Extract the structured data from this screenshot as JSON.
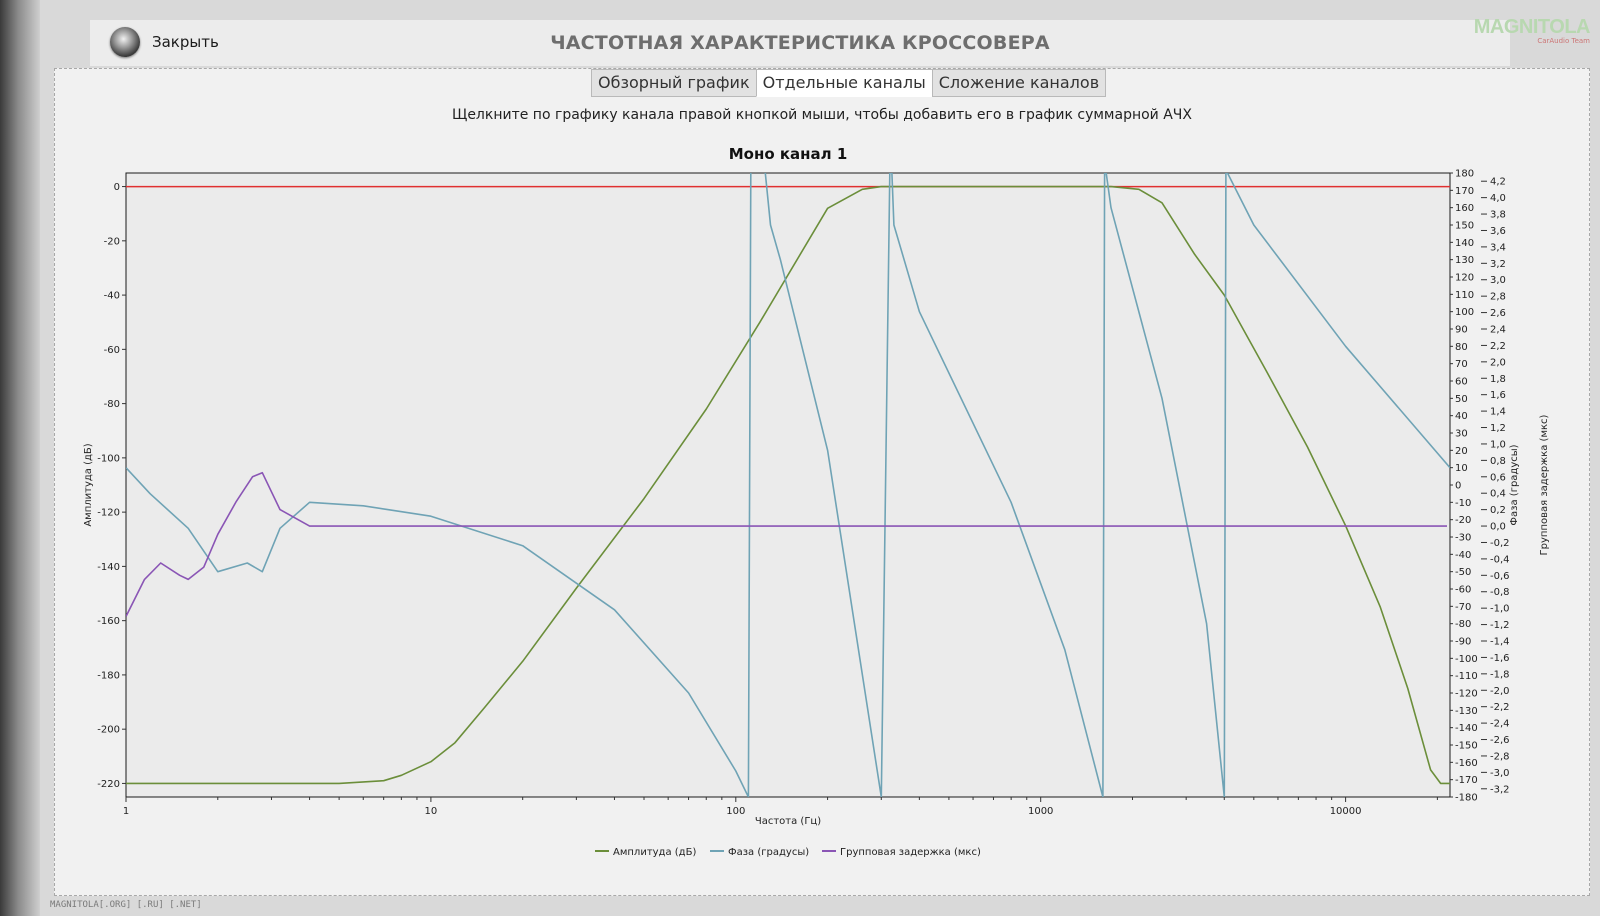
{
  "window": {
    "close_label": "Закрыть",
    "title": "ЧАСТОТНАЯ ХАРАКТЕРИСТИКА КРОССОВЕРА",
    "logo_text": "MAGNITOLA",
    "logo_sub": "CarAudio Team"
  },
  "tabs": [
    {
      "label": "Обзорный график",
      "active": false
    },
    {
      "label": "Отдельные каналы",
      "active": true
    },
    {
      "label": "Сложение каналов",
      "active": false
    }
  ],
  "hint": "Щелкните по графику канала правой кнопкой мыши, чтобы добавить его в график суммарной АЧХ",
  "footer": "MAGNITOLA[.ORG] [.RU] [.NET]",
  "chart_data": {
    "type": "line",
    "title": "Моно канал 1",
    "xlabel": "Частота (Гц)",
    "ylabel": "Амплитуда (дБ)",
    "y2label": "Фаза (градусы)",
    "y3label": "Групповая задержка (мкс)",
    "x_scale": "log",
    "xlim": [
      1,
      22000
    ],
    "ylim": [
      -225,
      5
    ],
    "y2lim": [
      -180,
      180
    ],
    "y3lim": [
      -3.3,
      4.3
    ],
    "x_ticks": [
      1,
      10,
      100,
      1000,
      10000
    ],
    "x_tick_labels": [
      "1",
      "10",
      "100",
      "1000",
      "10000"
    ],
    "y_ticks": [
      0,
      -20,
      -40,
      -60,
      -80,
      -100,
      -120,
      -140,
      -160,
      -180,
      -200,
      -220
    ],
    "y2_ticks": [
      180,
      170,
      160,
      150,
      140,
      130,
      120,
      110,
      100,
      90,
      80,
      70,
      60,
      50,
      40,
      30,
      20,
      10,
      0,
      -10,
      -20,
      -30,
      -40,
      -50,
      -60,
      -70,
      -80,
      -90,
      -100,
      -110,
      -120,
      -130,
      -140,
      -150,
      -160,
      -170,
      -180
    ],
    "y3_ticks": [
      "4,2",
      "4,0",
      "3,8",
      "3,6",
      "3,4",
      "3,2",
      "3,0",
      "2,8",
      "2,6",
      "2,4",
      "2,2",
      "2,0",
      "1,8",
      "1,6",
      "1,4",
      "1,2",
      "1,0",
      "0,8",
      "0,6",
      "0,4",
      "0,2",
      "0,0",
      "-0,2",
      "-0,4",
      "-0,6",
      "-0,8",
      "-1,0",
      "-1,2",
      "-1,4",
      "-1,6",
      "-1,8",
      "-2,0",
      "-2,2",
      "-2,4",
      "-2,6",
      "-2,8",
      "-3,0",
      "-3,2"
    ],
    "reference_line": {
      "y": 0,
      "color": "#e03030"
    },
    "grid": false,
    "legend_position": "bottom",
    "series": [
      {
        "name": "Амплитуда (дБ)",
        "axis": "y",
        "color": "#6b8e3a",
        "x": [
          1,
          5,
          7,
          8,
          10,
          12,
          15,
          20,
          30,
          50,
          80,
          120,
          200,
          260,
          300,
          1000,
          1700,
          2100,
          2500,
          3200,
          4000,
          5500,
          7500,
          10000,
          13000,
          16000,
          19000,
          20500,
          22000
        ],
        "y": [
          -220,
          -220,
          -219,
          -217,
          -212,
          -205,
          -192,
          -175,
          -148,
          -115,
          -82,
          -50,
          -8,
          -1,
          0,
          0,
          0,
          -1,
          -6,
          -25,
          -40,
          -68,
          -96,
          -125,
          -155,
          -185,
          -215,
          -220,
          -220
        ]
      },
      {
        "name": "Фаза (градусы)",
        "axis": "y2",
        "color": "#6fa3b5",
        "x": [
          1,
          1.2,
          1.6,
          2,
          2.5,
          2.8,
          3.2,
          4,
          6,
          10,
          20,
          40,
          70,
          100,
          110,
          112,
          120,
          125,
          130,
          140,
          200,
          300,
          320,
          325,
          330,
          400,
          800,
          1200,
          1600,
          1620,
          1640,
          1700,
          2500,
          3500,
          4000,
          4050,
          4100,
          5000,
          10000,
          22000
        ],
        "y": [
          10,
          -5,
          -25,
          -50,
          -45,
          -50,
          -25,
          -10,
          -12,
          -18,
          -35,
          -72,
          -120,
          -165,
          -180,
          180,
          190,
          180,
          150,
          130,
          20,
          -180,
          180,
          180,
          150,
          100,
          -10,
          -95,
          -180,
          180,
          180,
          160,
          50,
          -80,
          -180,
          180,
          180,
          150,
          80,
          10
        ]
      },
      {
        "name": "Групповая задержка (мкс)",
        "axis": "y3",
        "color": "#8a55b5",
        "x": [
          1,
          1.15,
          1.3,
          1.5,
          1.6,
          1.8,
          2,
          2.3,
          2.6,
          2.8,
          3.2,
          4,
          5,
          10,
          100,
          200,
          1000,
          10000,
          21500
        ],
        "y": [
          -1.1,
          -0.65,
          -0.45,
          -0.6,
          -0.65,
          -0.5,
          -0.1,
          0.3,
          0.6,
          0.65,
          0.2,
          0.0,
          0.0,
          0.0,
          0.0,
          0.0,
          0.0,
          0.0,
          0.0
        ]
      }
    ]
  }
}
